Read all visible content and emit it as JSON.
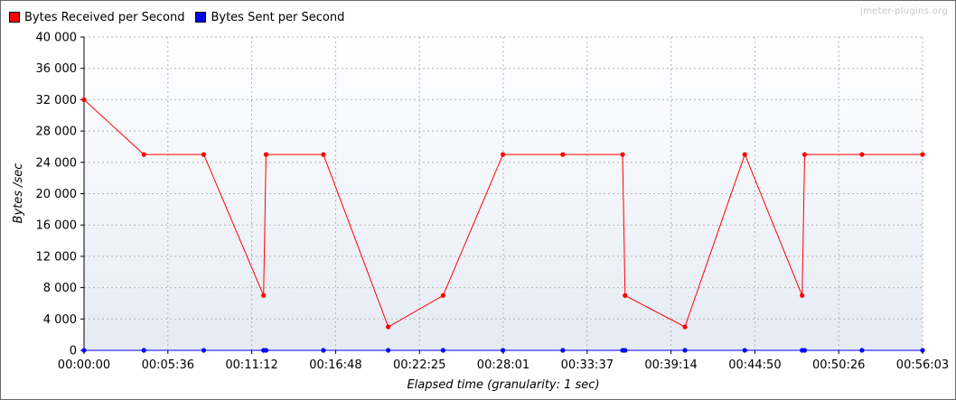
{
  "watermark": "jmeter-plugins.org",
  "legend": [
    {
      "label": "Bytes Received per Second",
      "color": "#ff0000"
    },
    {
      "label": "Bytes Sent per Second",
      "color": "#0000ff"
    }
  ],
  "chart_data": {
    "type": "line",
    "xlabel": "Elapsed time (granularity: 1 sec)",
    "ylabel": "Bytes /sec",
    "ylim": [
      0,
      40000
    ],
    "yticks": [
      0,
      4000,
      8000,
      12000,
      16000,
      20000,
      24000,
      28000,
      32000,
      36000,
      40000
    ],
    "ytick_labels": [
      "0",
      "4 000",
      "8 000",
      "12 000",
      "16 000",
      "20 000",
      "24 000",
      "28 000",
      "32 000",
      "36 000",
      "40 000"
    ],
    "xlim": [
      "00:00:00",
      "00:56:03"
    ],
    "xtick_labels": [
      "00:00:00",
      "00:05:36",
      "00:11:12",
      "00:16:48",
      "00:22:25",
      "00:28:01",
      "00:33:37",
      "00:39:14",
      "00:44:50",
      "00:50:26",
      "00:56:03"
    ],
    "grid": true,
    "legend_position": "top-left",
    "series": [
      {
        "name": "Bytes Received per Second",
        "color": "#ff0000",
        "x": [
          "00:00:00",
          "00:04:00",
          "00:08:00",
          "00:12:00",
          "00:12:10",
          "00:16:00",
          "00:20:20",
          "00:24:00",
          "00:28:00",
          "00:32:00",
          "00:36:00",
          "00:36:10",
          "00:40:10",
          "00:44:10",
          "00:48:00",
          "00:48:10",
          "00:52:00",
          "00:56:03"
        ],
        "values": [
          32000,
          25000,
          25000,
          7000,
          25000,
          25000,
          3000,
          7000,
          25000,
          25000,
          25000,
          7000,
          3000,
          25000,
          7000,
          25000,
          25000,
          25000
        ]
      },
      {
        "name": "Bytes Sent per Second",
        "color": "#0000ff",
        "x": [
          "00:00:00",
          "00:04:00",
          "00:08:00",
          "00:12:00",
          "00:12:10",
          "00:16:00",
          "00:20:20",
          "00:24:00",
          "00:28:00",
          "00:32:00",
          "00:36:00",
          "00:36:10",
          "00:40:10",
          "00:44:10",
          "00:48:00",
          "00:48:10",
          "00:52:00",
          "00:56:03"
        ],
        "values": [
          0,
          0,
          0,
          0,
          0,
          0,
          0,
          0,
          0,
          0,
          0,
          0,
          0,
          0,
          0,
          0,
          0,
          0
        ]
      }
    ]
  }
}
